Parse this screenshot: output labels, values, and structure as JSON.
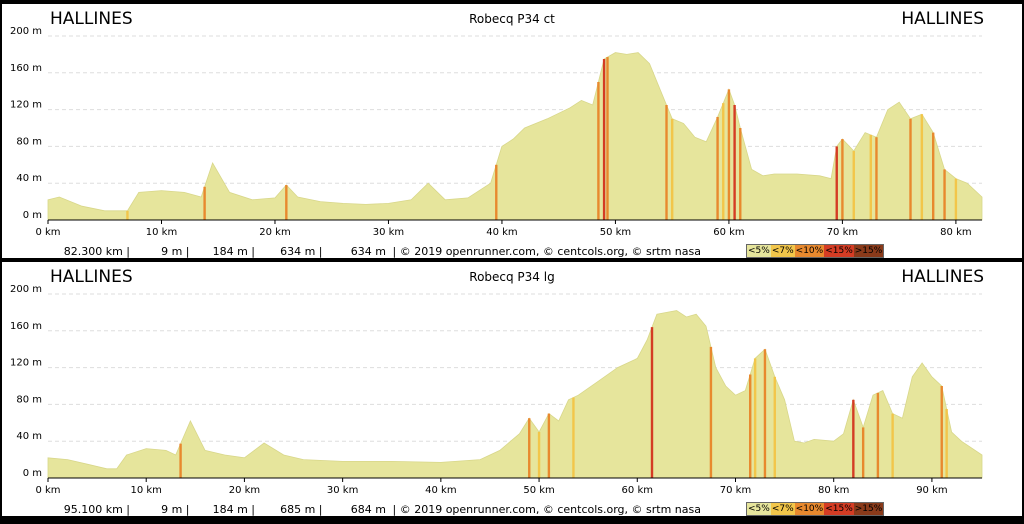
{
  "colors": {
    "grade_lt5": "#e6e59c",
    "grade_lt7": "#f2c64a",
    "grade_lt10": "#e8892e",
    "grade_lt15": "#d43c24",
    "grade_gt15": "#8a3a1a",
    "fill": "#e6e59c",
    "grid": "#dddddd"
  },
  "chart_data": [
    {
      "type": "area",
      "title": "Robecq P34 ct",
      "start_label": "HALLINES",
      "end_label": "HALLINES",
      "y_ticks": [
        "0 m",
        "40 m",
        "80 m",
        "120 m",
        "160 m",
        "200 m"
      ],
      "x_ticks": [
        "0 km",
        "10 km",
        "20 km",
        "30 km",
        "40 km",
        "50 km",
        "60 km",
        "70 km",
        "80 km"
      ],
      "ylim": [
        0,
        200
      ],
      "xlim": [
        0,
        82.3
      ],
      "grid": true,
      "x": [
        0,
        1,
        3,
        5,
        7,
        8,
        10,
        12,
        13.5,
        14.5,
        16,
        18,
        20,
        21,
        22,
        24,
        26,
        28,
        30,
        32,
        33.5,
        35,
        37,
        39,
        40,
        41,
        42,
        44,
        46,
        47,
        48,
        49,
        50,
        51,
        52,
        53,
        54,
        55,
        56,
        57,
        58,
        59,
        60,
        60.5,
        61,
        62,
        63,
        64,
        66,
        68,
        69,
        69.5,
        70,
        71,
        71.5,
        72,
        73,
        74,
        75,
        76,
        77,
        78,
        79,
        80,
        81,
        82.3
      ],
      "y": [
        22,
        25,
        15,
        10,
        10,
        30,
        32,
        30,
        25,
        62,
        30,
        22,
        24,
        38,
        25,
        20,
        18,
        17,
        18,
        22,
        40,
        22,
        24,
        40,
        80,
        88,
        100,
        110,
        122,
        130,
        125,
        175,
        182,
        180,
        182,
        170,
        140,
        110,
        105,
        90,
        85,
        112,
        142,
        125,
        100,
        55,
        48,
        50,
        50,
        48,
        45,
        80,
        88,
        75,
        85,
        95,
        90,
        120,
        128,
        110,
        115,
        95,
        55,
        45,
        40,
        25
      ],
      "steep": [
        [
          7,
          "lt7"
        ],
        [
          13.8,
          "lt10"
        ],
        [
          21,
          "lt10"
        ],
        [
          39.5,
          "lt10"
        ],
        [
          48.5,
          "lt10"
        ],
        [
          49,
          "lt15"
        ],
        [
          49.3,
          "lt10"
        ],
        [
          54.5,
          "lt10"
        ],
        [
          55,
          "lt7"
        ],
        [
          59,
          "lt10"
        ],
        [
          59.5,
          "lt7"
        ],
        [
          60,
          "lt10"
        ],
        [
          60.5,
          "lt15"
        ],
        [
          61,
          "lt10"
        ],
        [
          69.5,
          "lt15"
        ],
        [
          70,
          "lt10"
        ],
        [
          71,
          "lt7"
        ],
        [
          72.5,
          "lt7"
        ],
        [
          73,
          "lt10"
        ],
        [
          76,
          "lt10"
        ],
        [
          77,
          "lt7"
        ],
        [
          78,
          "lt10"
        ],
        [
          79,
          "lt10"
        ],
        [
          80,
          "lt7"
        ]
      ],
      "footer": {
        "distance": "82.300 km |",
        "min_alt": "9 m |",
        "max_alt": "184 m |",
        "gain": "634 m |",
        "loss": "634 m",
        "credit": "| © 2019 openrunner.com, © centcols.org, © srtm nasa"
      },
      "legend": [
        "<5%",
        "<7%",
        "<10%",
        "<15%",
        ">15%"
      ]
    },
    {
      "type": "area",
      "title": "Robecq P34 lg",
      "start_label": "HALLINES",
      "end_label": "HALLINES",
      "y_ticks": [
        "0 m",
        "40 m",
        "80 m",
        "120 m",
        "160 m",
        "200 m"
      ],
      "x_ticks": [
        "0 km",
        "10 km",
        "20 km",
        "30 km",
        "40 km",
        "50 km",
        "60 km",
        "70 km",
        "80 km",
        "90 km"
      ],
      "ylim": [
        0,
        200
      ],
      "xlim": [
        0,
        95.1
      ],
      "grid": true,
      "x": [
        0,
        2,
        4,
        6,
        7,
        8,
        10,
        12,
        13,
        14.5,
        16,
        18,
        20,
        22,
        24,
        26,
        30,
        35,
        40,
        44,
        46,
        48,
        49,
        50,
        51,
        52,
        53,
        54,
        56,
        58,
        60,
        61,
        62,
        63,
        64,
        65,
        66,
        67,
        68,
        69,
        70,
        71,
        72,
        73,
        74,
        75,
        76,
        77,
        78,
        80,
        81,
        82,
        83,
        84,
        85,
        86,
        87,
        88,
        89,
        90,
        91,
        92,
        93,
        95.1
      ],
      "y": [
        22,
        20,
        15,
        10,
        10,
        25,
        32,
        30,
        25,
        62,
        30,
        25,
        22,
        38,
        25,
        20,
        18,
        18,
        17,
        20,
        30,
        48,
        65,
        50,
        70,
        62,
        85,
        90,
        105,
        120,
        130,
        150,
        178,
        180,
        182,
        175,
        178,
        165,
        120,
        100,
        90,
        95,
        130,
        140,
        110,
        85,
        40,
        38,
        42,
        40,
        48,
        85,
        55,
        90,
        95,
        70,
        65,
        110,
        125,
        110,
        100,
        50,
        40,
        25
      ],
      "steep": [
        [
          13.5,
          "lt10"
        ],
        [
          49,
          "lt10"
        ],
        [
          50,
          "lt7"
        ],
        [
          51,
          "lt10"
        ],
        [
          53.5,
          "lt7"
        ],
        [
          61.5,
          "lt15"
        ],
        [
          67.5,
          "lt10"
        ],
        [
          71.5,
          "lt10"
        ],
        [
          72,
          "lt7"
        ],
        [
          73,
          "lt10"
        ],
        [
          74,
          "lt7"
        ],
        [
          82,
          "lt15"
        ],
        [
          83,
          "lt10"
        ],
        [
          84.5,
          "lt10"
        ],
        [
          86,
          "lt7"
        ],
        [
          91,
          "lt10"
        ],
        [
          91.5,
          "lt7"
        ]
      ],
      "footer": {
        "distance": "95.100 km |",
        "min_alt": "9 m |",
        "max_alt": "184 m |",
        "gain": "685 m |",
        "loss": "684 m",
        "credit": "| © 2019 openrunner.com, © centcols.org, © srtm nasa"
      },
      "legend": [
        "<5%",
        "<7%",
        "<10%",
        "<15%",
        ">15%"
      ]
    }
  ]
}
